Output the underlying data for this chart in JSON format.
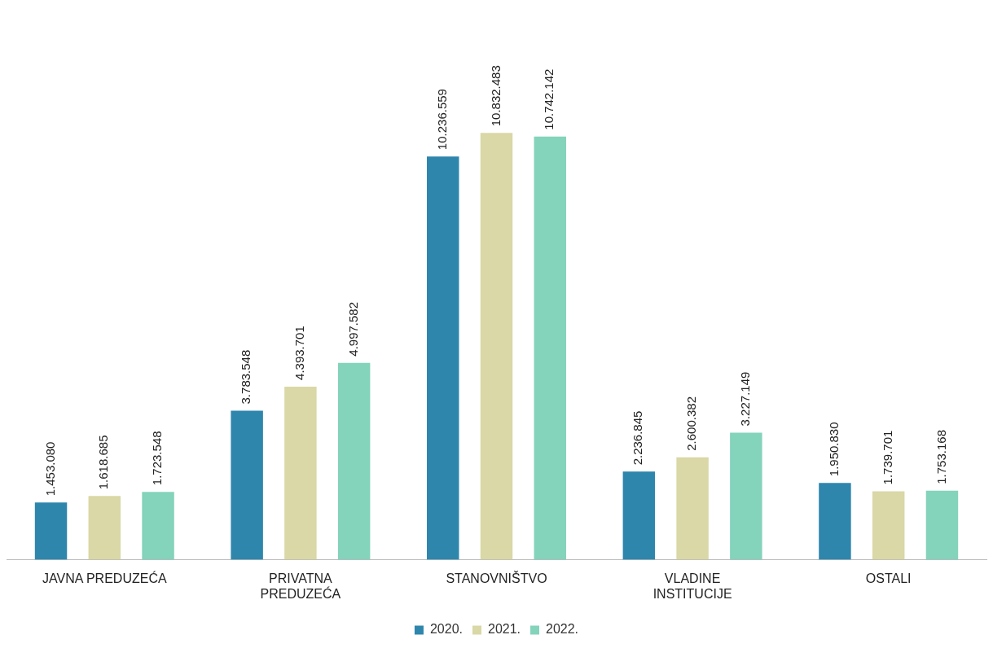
{
  "chart_data": {
    "type": "bar",
    "categories": [
      "JAVNA PREDUZEĆA",
      "PRIVATNA PREDUZEĆA",
      "STANOVNIŠTVO",
      "VLADINE INSTITUCIJE",
      "OSTALI"
    ],
    "series": [
      {
        "name": "2020.",
        "color": "#2e86ad",
        "values": [
          1453080,
          3783548,
          10236559,
          2236845,
          1950830
        ],
        "value_labels": [
          "1.453.080",
          "3.783.548",
          "10.236.559",
          "2.236.845",
          "1.950.830"
        ]
      },
      {
        "name": "2021.",
        "color": "#d9d8a6",
        "values": [
          1618685,
          4393701,
          10832483,
          2600382,
          1739701
        ],
        "value_labels": [
          "1.618.685",
          "4.393.701",
          "10.832.483",
          "2.600.382",
          "1.739.701"
        ]
      },
      {
        "name": "2022.",
        "color": "#84d3bb",
        "values": [
          1723548,
          4997582,
          10742142,
          3227149,
          1753168
        ],
        "value_labels": [
          "1.723.548",
          "4.997.582",
          "10.742.142",
          "3.227.149",
          "1.753.168"
        ]
      }
    ],
    "legend": "bottom",
    "grid": false
  }
}
